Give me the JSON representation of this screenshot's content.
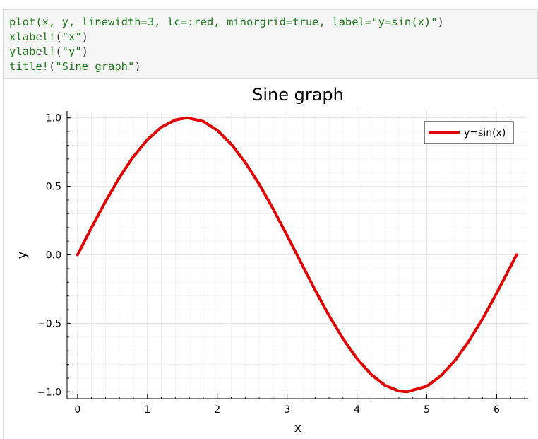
{
  "code_cell": {
    "lines": [
      [
        {
          "t": "plot",
          "c": "fn"
        },
        {
          "t": "(x, y, linewidth=3, lc=:red, minorgrid=true, label=",
          "c": "fn"
        },
        {
          "t": "\"y=sin(x)\"",
          "c": "str"
        },
        {
          "t": ")",
          "c": "punc"
        }
      ],
      [
        {
          "t": "xlabel!",
          "c": "fn"
        },
        {
          "t": "(",
          "c": "punc"
        },
        {
          "t": "\"x\"",
          "c": "str"
        },
        {
          "t": ")",
          "c": "punc"
        }
      ],
      [
        {
          "t": "ylabel!",
          "c": "fn"
        },
        {
          "t": "(",
          "c": "punc"
        },
        {
          "t": "\"y\"",
          "c": "str"
        },
        {
          "t": ")",
          "c": "punc"
        }
      ],
      [
        {
          "t": "title!",
          "c": "fn"
        },
        {
          "t": "(",
          "c": "punc"
        },
        {
          "t": "\"Sine graph\"",
          "c": "str"
        },
        {
          "t": ")",
          "c": "punc"
        }
      ]
    ]
  },
  "chart_data": {
    "type": "line",
    "title": "Sine graph",
    "xlabel": "x",
    "ylabel": "y",
    "xlim": [
      -0.15,
      6.45
    ],
    "ylim": [
      -1.05,
      1.05
    ],
    "xticks": [
      0,
      1,
      2,
      3,
      4,
      5,
      6
    ],
    "xtick_labels": [
      "0",
      "1",
      "2",
      "3",
      "4",
      "5",
      "6"
    ],
    "yticks": [
      -1.0,
      -0.5,
      0.0,
      0.5,
      1.0
    ],
    "ytick_labels": [
      "−1.0",
      "−0.5",
      "0.0",
      "0.5",
      "1.0"
    ],
    "grid": true,
    "minorgrid": true,
    "legend_position": "top-right",
    "series": [
      {
        "name": "y=sin(x)",
        "color": "#e00000",
        "x": [
          0,
          0.2,
          0.4,
          0.6,
          0.8,
          1.0,
          1.2,
          1.4,
          1.571,
          1.8,
          2.0,
          2.2,
          2.4,
          2.6,
          2.8,
          3.0,
          3.142,
          3.4,
          3.6,
          3.8,
          4.0,
          4.2,
          4.4,
          4.6,
          4.712,
          5.0,
          5.2,
          5.4,
          5.6,
          5.8,
          6.0,
          6.2,
          6.283
        ],
        "y": [
          0.0,
          0.199,
          0.389,
          0.565,
          0.717,
          0.841,
          0.932,
          0.985,
          1.0,
          0.974,
          0.909,
          0.808,
          0.675,
          0.516,
          0.335,
          0.141,
          0.0,
          -0.256,
          -0.443,
          -0.612,
          -0.757,
          -0.872,
          -0.952,
          -0.994,
          -1.0,
          -0.959,
          -0.883,
          -0.773,
          -0.631,
          -0.465,
          -0.279,
          -0.083,
          0.0
        ]
      }
    ]
  }
}
